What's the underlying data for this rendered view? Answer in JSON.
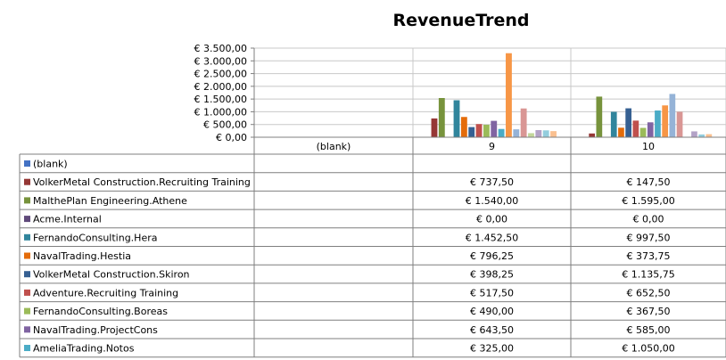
{
  "chart_data": {
    "type": "bar",
    "title": "RevenueTrend",
    "categories": [
      "(blank)",
      "9",
      "10"
    ],
    "y_ticks": [
      "€ 0,00",
      "€ 500,00",
      "€ 1.000,00",
      "€ 1.500,00",
      "€ 2.000,00",
      "€ 2.500,00",
      "€ 3.000,00",
      "€ 3.500,00"
    ],
    "ylim": [
      0,
      3500
    ],
    "grid": true,
    "legend": "data-table",
    "series": [
      {
        "name": "(blank)",
        "color": "#4472C4",
        "values": [
          null,
          null,
          null
        ],
        "labels": [
          "",
          "",
          ""
        ]
      },
      {
        "name": "VolkerMetal Construction.Recruiting Training",
        "color": "#953735",
        "values": [
          null,
          737.5,
          147.5
        ],
        "labels": [
          "",
          "€ 737,50",
          "€ 147,50"
        ]
      },
      {
        "name": "MalthePlan Engineering.Athene",
        "color": "#77933C",
        "values": [
          null,
          1540,
          1595
        ],
        "labels": [
          "",
          "€ 1.540,00",
          "€ 1.595,00"
        ]
      },
      {
        "name": "Acme.Internal",
        "color": "#604A7B",
        "values": [
          null,
          0,
          0
        ],
        "labels": [
          "",
          "€ 0,00",
          "€ 0,00"
        ]
      },
      {
        "name": "FernandoConsulting.Hera",
        "color": "#31859C",
        "values": [
          null,
          1452.5,
          997.5
        ],
        "labels": [
          "",
          "€ 1.452,50",
          "€ 997,50"
        ]
      },
      {
        "name": "NavalTrading.Hestia",
        "color": "#E46C0A",
        "values": [
          null,
          796.25,
          373.75
        ],
        "labels": [
          "",
          "€ 796,25",
          "€ 373,75"
        ]
      },
      {
        "name": "VolkerMetal Construction.Skiron",
        "color": "#366092",
        "values": [
          null,
          398.25,
          1135.75
        ],
        "labels": [
          "",
          "€ 398,25",
          "€ 1.135,75"
        ]
      },
      {
        "name": "Adventure.Recruiting Training",
        "color": "#C0504D",
        "values": [
          null,
          517.5,
          652.5
        ],
        "labels": [
          "",
          "€ 517,50",
          "€ 652,50"
        ]
      },
      {
        "name": "FernandoConsulting.Boreas",
        "color": "#9BBB59",
        "values": [
          null,
          490,
          367.5
        ],
        "labels": [
          "",
          "€ 490,00",
          "€ 367,50"
        ]
      },
      {
        "name": "NavalTrading.ProjectCons",
        "color": "#8064A2",
        "values": [
          null,
          643.5,
          585
        ],
        "labels": [
          "",
          "€ 643,50",
          "€ 585,00"
        ]
      },
      {
        "name": "AmeliaTrading.Notos",
        "color": "#4BACC6",
        "values": [
          null,
          325,
          1050
        ],
        "labels": [
          "",
          "€ 325,00",
          "€ 1.050,00"
        ]
      },
      {
        "name": "",
        "color": "#F79646",
        "values": [
          null,
          3300,
          1250
        ],
        "labels": [],
        "in_table": false
      },
      {
        "name": "",
        "color": "#95B3D7",
        "values": [
          null,
          310,
          1700
        ],
        "labels": [],
        "in_table": false
      },
      {
        "name": "",
        "color": "#D99694",
        "values": [
          null,
          1130,
          1000
        ],
        "labels": [],
        "in_table": false
      },
      {
        "name": "",
        "color": "#C3D69B",
        "values": [
          null,
          160,
          0
        ],
        "labels": [],
        "in_table": false
      },
      {
        "name": "",
        "color": "#B3A2C7",
        "values": [
          null,
          280,
          230
        ],
        "labels": [],
        "in_table": false
      },
      {
        "name": "",
        "color": "#93CDDD",
        "values": [
          null,
          270,
          110
        ],
        "labels": [],
        "in_table": false
      },
      {
        "name": "",
        "color": "#FAC090",
        "values": [
          null,
          240,
          120
        ],
        "labels": [],
        "in_table": false
      },
      {
        "name": "",
        "color": "#8EB4E3",
        "values": [
          null,
          0,
          0
        ],
        "labels": [],
        "in_table": false
      }
    ]
  }
}
